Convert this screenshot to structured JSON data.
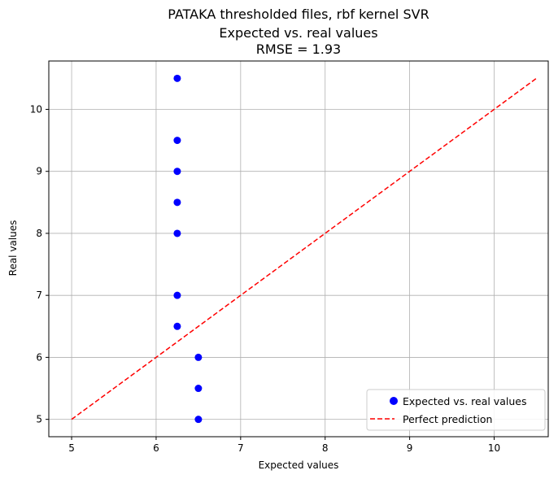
{
  "chart_data": {
    "type": "scatter",
    "title_lines": [
      "PATAKA thresholded files, rbf kernel SVR",
      "Expected vs. real values",
      "RMSE = 1.93"
    ],
    "xlabel": "Expected values",
    "ylabel": "Real values",
    "xlim": [
      4.73,
      10.64
    ],
    "ylim": [
      4.72,
      10.78
    ],
    "xticks": [
      5,
      6,
      7,
      8,
      9,
      10
    ],
    "yticks": [
      5,
      6,
      7,
      8,
      9,
      10
    ],
    "grid": true,
    "legend_position": "lower-right",
    "series": [
      {
        "name": "Expected vs. real values",
        "kind": "scatter",
        "color": "#0000ff",
        "x": [
          6.25,
          6.25,
          6.25,
          6.25,
          6.25,
          6.25,
          6.25,
          6.5,
          6.5,
          6.5
        ],
        "y": [
          10.5,
          9.5,
          9.0,
          8.5,
          8.0,
          7.0,
          6.5,
          6.0,
          5.5,
          5.0
        ]
      },
      {
        "name": "Perfect prediction",
        "kind": "line",
        "style": "dashed",
        "color": "#ff0000",
        "x": [
          5,
          10.5
        ],
        "y": [
          5,
          10.5
        ]
      }
    ]
  }
}
